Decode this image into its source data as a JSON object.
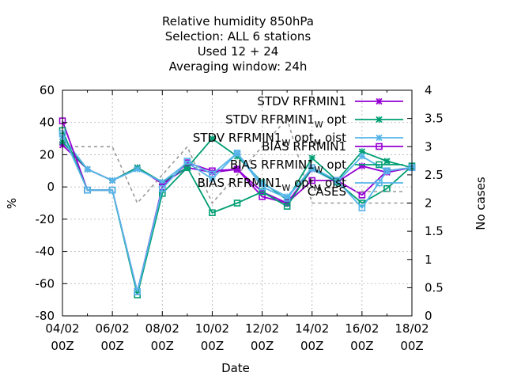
{
  "chart_data": {
    "type": "line",
    "title_lines": [
      "Relative humidity 850hPa",
      "Selection: ALL      6 stations",
      "Used  12 + 24",
      "Averaging window: 24h"
    ],
    "xlabel": "Date",
    "ylabel": "%",
    "y2label": "No cases",
    "x_ticks": [
      {
        "x": 0,
        "line1": "04/02",
        "line2": "00Z"
      },
      {
        "x": 2,
        "line1": "06/02",
        "line2": "00Z"
      },
      {
        "x": 4,
        "line1": "08/02",
        "line2": "00Z"
      },
      {
        "x": 6,
        "line1": "10/02",
        "line2": "00Z"
      },
      {
        "x": 8,
        "line1": "12/02",
        "line2": "00Z"
      },
      {
        "x": 10,
        "line1": "14/02",
        "line2": "00Z"
      },
      {
        "x": 12,
        "line1": "16/02",
        "line2": "00Z"
      },
      {
        "x": 14,
        "line1": "18/02",
        "line2": "00Z"
      }
    ],
    "xlim": [
      0,
      14
    ],
    "ylim": [
      -80,
      60
    ],
    "y2lim": [
      0,
      4
    ],
    "y_ticks": [
      -80,
      -60,
      -40,
      -20,
      0,
      20,
      40,
      60
    ],
    "y2_ticks": [
      0,
      0.5,
      1,
      1.5,
      2,
      2.5,
      3,
      3.5,
      4
    ],
    "grid": true,
    "legend_position": "top-right",
    "series": [
      {
        "name_main": "STDV RFRMIN1",
        "name_sub1": "",
        "name_mid": "",
        "name_sub2": "",
        "name_end": "",
        "color": "#9400d3",
        "marker": "x",
        "axis": "y",
        "x": [
          0,
          1,
          2,
          3,
          4,
          5,
          6,
          7,
          8,
          9,
          10,
          11,
          12,
          13,
          14
        ],
        "values": [
          26,
          11,
          4,
          12,
          2,
          12,
          9,
          11,
          -3,
          -10,
          11,
          3,
          13,
          9,
          12
        ]
      },
      {
        "name_main": "STDV RFRMIN1",
        "name_sub1": "W",
        "name_mid": " opt",
        "name_sub2": "",
        "name_end": "",
        "color": "#009e73",
        "marker": "x",
        "axis": "y",
        "x": [
          0,
          1,
          2,
          3,
          4,
          5,
          6,
          7,
          8,
          9,
          10,
          11,
          12,
          13,
          14
        ],
        "values": [
          28,
          11,
          4,
          12,
          3,
          12,
          30,
          19,
          3,
          -8,
          18,
          4,
          22,
          16,
          12
        ]
      },
      {
        "name_main": "STDV RFRMIN1",
        "name_sub1": "W",
        "name_mid": " opt",
        "name_sub2": "M",
        "name_end": " oist",
        "color": "#56b4e9",
        "marker": "x",
        "axis": "y",
        "x": [
          0,
          1,
          2,
          3,
          4,
          5,
          6,
          7,
          8,
          9,
          10,
          11,
          12,
          13,
          14
        ],
        "values": [
          31,
          11,
          4,
          11,
          3,
          15,
          5,
          21,
          2,
          -6,
          11,
          3,
          19,
          10,
          12
        ]
      },
      {
        "name_main": "BIAS RFRMIN1",
        "name_sub1": "",
        "name_mid": "",
        "name_sub2": "",
        "name_end": "",
        "color": "#9400d3",
        "marker": "square",
        "axis": "y",
        "x": [
          0,
          1,
          2,
          3,
          4,
          5,
          6,
          7,
          8,
          9,
          10,
          11,
          12,
          13,
          14
        ],
        "values": [
          41,
          -2,
          -2,
          -65,
          0,
          15,
          10,
          11,
          -6,
          -10,
          4,
          4,
          -5,
          10,
          12
        ]
      },
      {
        "name_main": "BIAS RFRMIN1",
        "name_sub1": "W",
        "name_mid": " opt",
        "name_sub2": "",
        "name_end": "",
        "color": "#009e73",
        "marker": "square",
        "axis": "y",
        "x": [
          0,
          1,
          2,
          3,
          4,
          5,
          6,
          7,
          8,
          9,
          10,
          11,
          12,
          13,
          14
        ],
        "values": [
          35,
          -2,
          -2,
          -67,
          -4,
          12,
          -16,
          -10,
          -3,
          -12,
          12,
          3,
          -10,
          -1,
          13
        ]
      },
      {
        "name_main": "BIAS RFRMIN1",
        "name_sub1": "W",
        "name_mid": " opt",
        "name_sub2": "M",
        "name_end": " oist",
        "color": "#56b4e9",
        "marker": "square",
        "axis": "y",
        "x": [
          0,
          1,
          2,
          3,
          4,
          5,
          6,
          7,
          8,
          9,
          10,
          11,
          12,
          13,
          14
        ],
        "values": [
          33,
          -2,
          -2,
          -65,
          -1,
          16,
          8,
          21,
          0,
          -7,
          12,
          4,
          -13,
          10,
          12
        ]
      },
      {
        "name_main": "CASES",
        "name_sub1": "",
        "name_mid": "",
        "name_sub2": "",
        "name_end": "",
        "color": "#999999",
        "marker": "none",
        "dashed": true,
        "axis": "y2",
        "x": [
          0,
          2,
          3,
          5,
          6,
          9,
          10,
          14
        ],
        "values": [
          3,
          3,
          2,
          3,
          2,
          3.5,
          2,
          2
        ]
      }
    ]
  }
}
